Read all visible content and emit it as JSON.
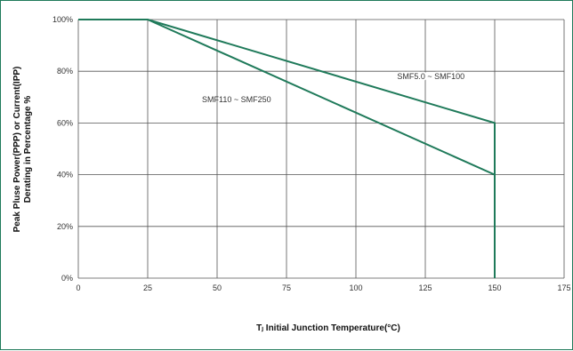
{
  "chart_data": {
    "type": "line",
    "title": "",
    "xlabel": "Tⱼ Initial Junction Temperature(°C)",
    "ylabel_lines": [
      "Peak Pluse Power(PPP) or Current(IPP)",
      "Derating in Percentage %"
    ],
    "xlim": [
      0,
      175
    ],
    "ylim": [
      0,
      100
    ],
    "x_ticks": [
      0,
      25,
      50,
      75,
      100,
      125,
      150,
      175
    ],
    "y_ticks": [
      0,
      20,
      40,
      60,
      80,
      100
    ],
    "y_tick_suffix": "%",
    "grid": true,
    "series": [
      {
        "name": "SMF5.0 ~ SMF100",
        "x": [
          0,
          25,
          150,
          150
        ],
        "y": [
          100,
          100,
          60,
          0
        ]
      },
      {
        "name": "SMF110 ~ SMF250",
        "x": [
          25,
          150,
          150
        ],
        "y": [
          100,
          40,
          0
        ]
      }
    ],
    "line_color": "#1f7a5a",
    "grid_color": "#555555"
  }
}
